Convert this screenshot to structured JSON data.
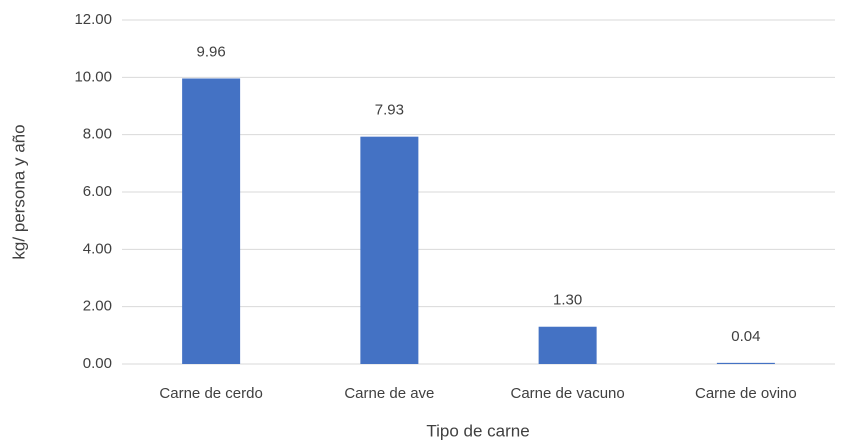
{
  "chart_data": {
    "type": "bar",
    "x_label": "Tipo de carne",
    "y_label": "kg/ persona y año",
    "categories": [
      "Carne de cerdo",
      "Carne de ave",
      "Carne de vacuno",
      "Carne de ovino"
    ],
    "values": [
      9.96,
      7.93,
      1.3,
      0.04
    ],
    "value_labels": [
      "9.96",
      "7.93",
      "1.30",
      "0.04"
    ],
    "color": "#4472c4",
    "ylim": [
      0,
      12
    ],
    "yticks": [
      {
        "value": 0,
        "label": "0.00"
      },
      {
        "value": 2,
        "label": "2.00"
      },
      {
        "value": 4,
        "label": "4.00"
      },
      {
        "value": 6,
        "label": "6.00"
      },
      {
        "value": 8,
        "label": "8.00"
      },
      {
        "value": 10,
        "label": "10.00"
      },
      {
        "value": 12,
        "label": "12.00"
      }
    ],
    "grid": true
  }
}
